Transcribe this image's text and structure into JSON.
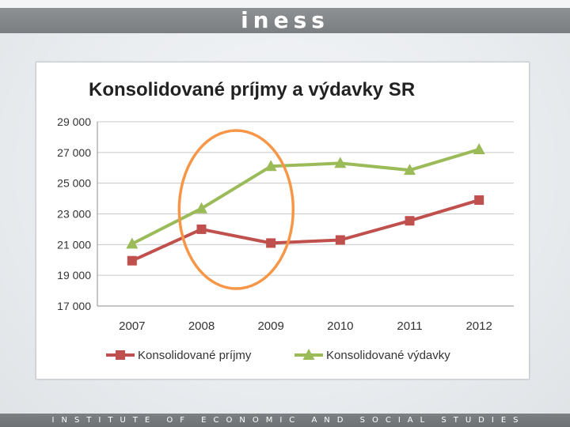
{
  "header": {
    "logo_text": "iness"
  },
  "footer": {
    "tagline": "INSTITUTE OF ECONOMIC AND SOCIAL STUDIES"
  },
  "colors": {
    "series_prijmy": "#c0504d",
    "series_vydavky": "#9bbb59",
    "highlight_ellipse": "#f79646",
    "header_bar": "#868a8d"
  },
  "chart_data": {
    "type": "line",
    "title": "Konsolidované príjmy a výdavky SR",
    "xlabel": "",
    "ylabel": "",
    "x": [
      "2007",
      "2008",
      "2009",
      "2010",
      "2011",
      "2012"
    ],
    "ylim": [
      17000,
      29000
    ],
    "yticks": [
      17000,
      19000,
      21000,
      23000,
      25000,
      27000,
      29000
    ],
    "ytick_labels": [
      "17 000",
      "19 000",
      "21 000",
      "23 000",
      "25 000",
      "27 000",
      "29 000"
    ],
    "grid": true,
    "legend": "bottom",
    "series": [
      {
        "name": "Konsolidované príjmy",
        "marker": "square",
        "color": "#c0504d",
        "values": [
          19950,
          22000,
          21100,
          21300,
          22550,
          23900
        ]
      },
      {
        "name": "Konsolidované výdavky",
        "marker": "triangle",
        "color": "#9bbb59",
        "values": [
          21050,
          23350,
          26100,
          26300,
          25850,
          27200
        ]
      }
    ],
    "annotation": {
      "type": "ellipse",
      "around": [
        "2008",
        "2009"
      ],
      "color": "#f79646"
    }
  }
}
